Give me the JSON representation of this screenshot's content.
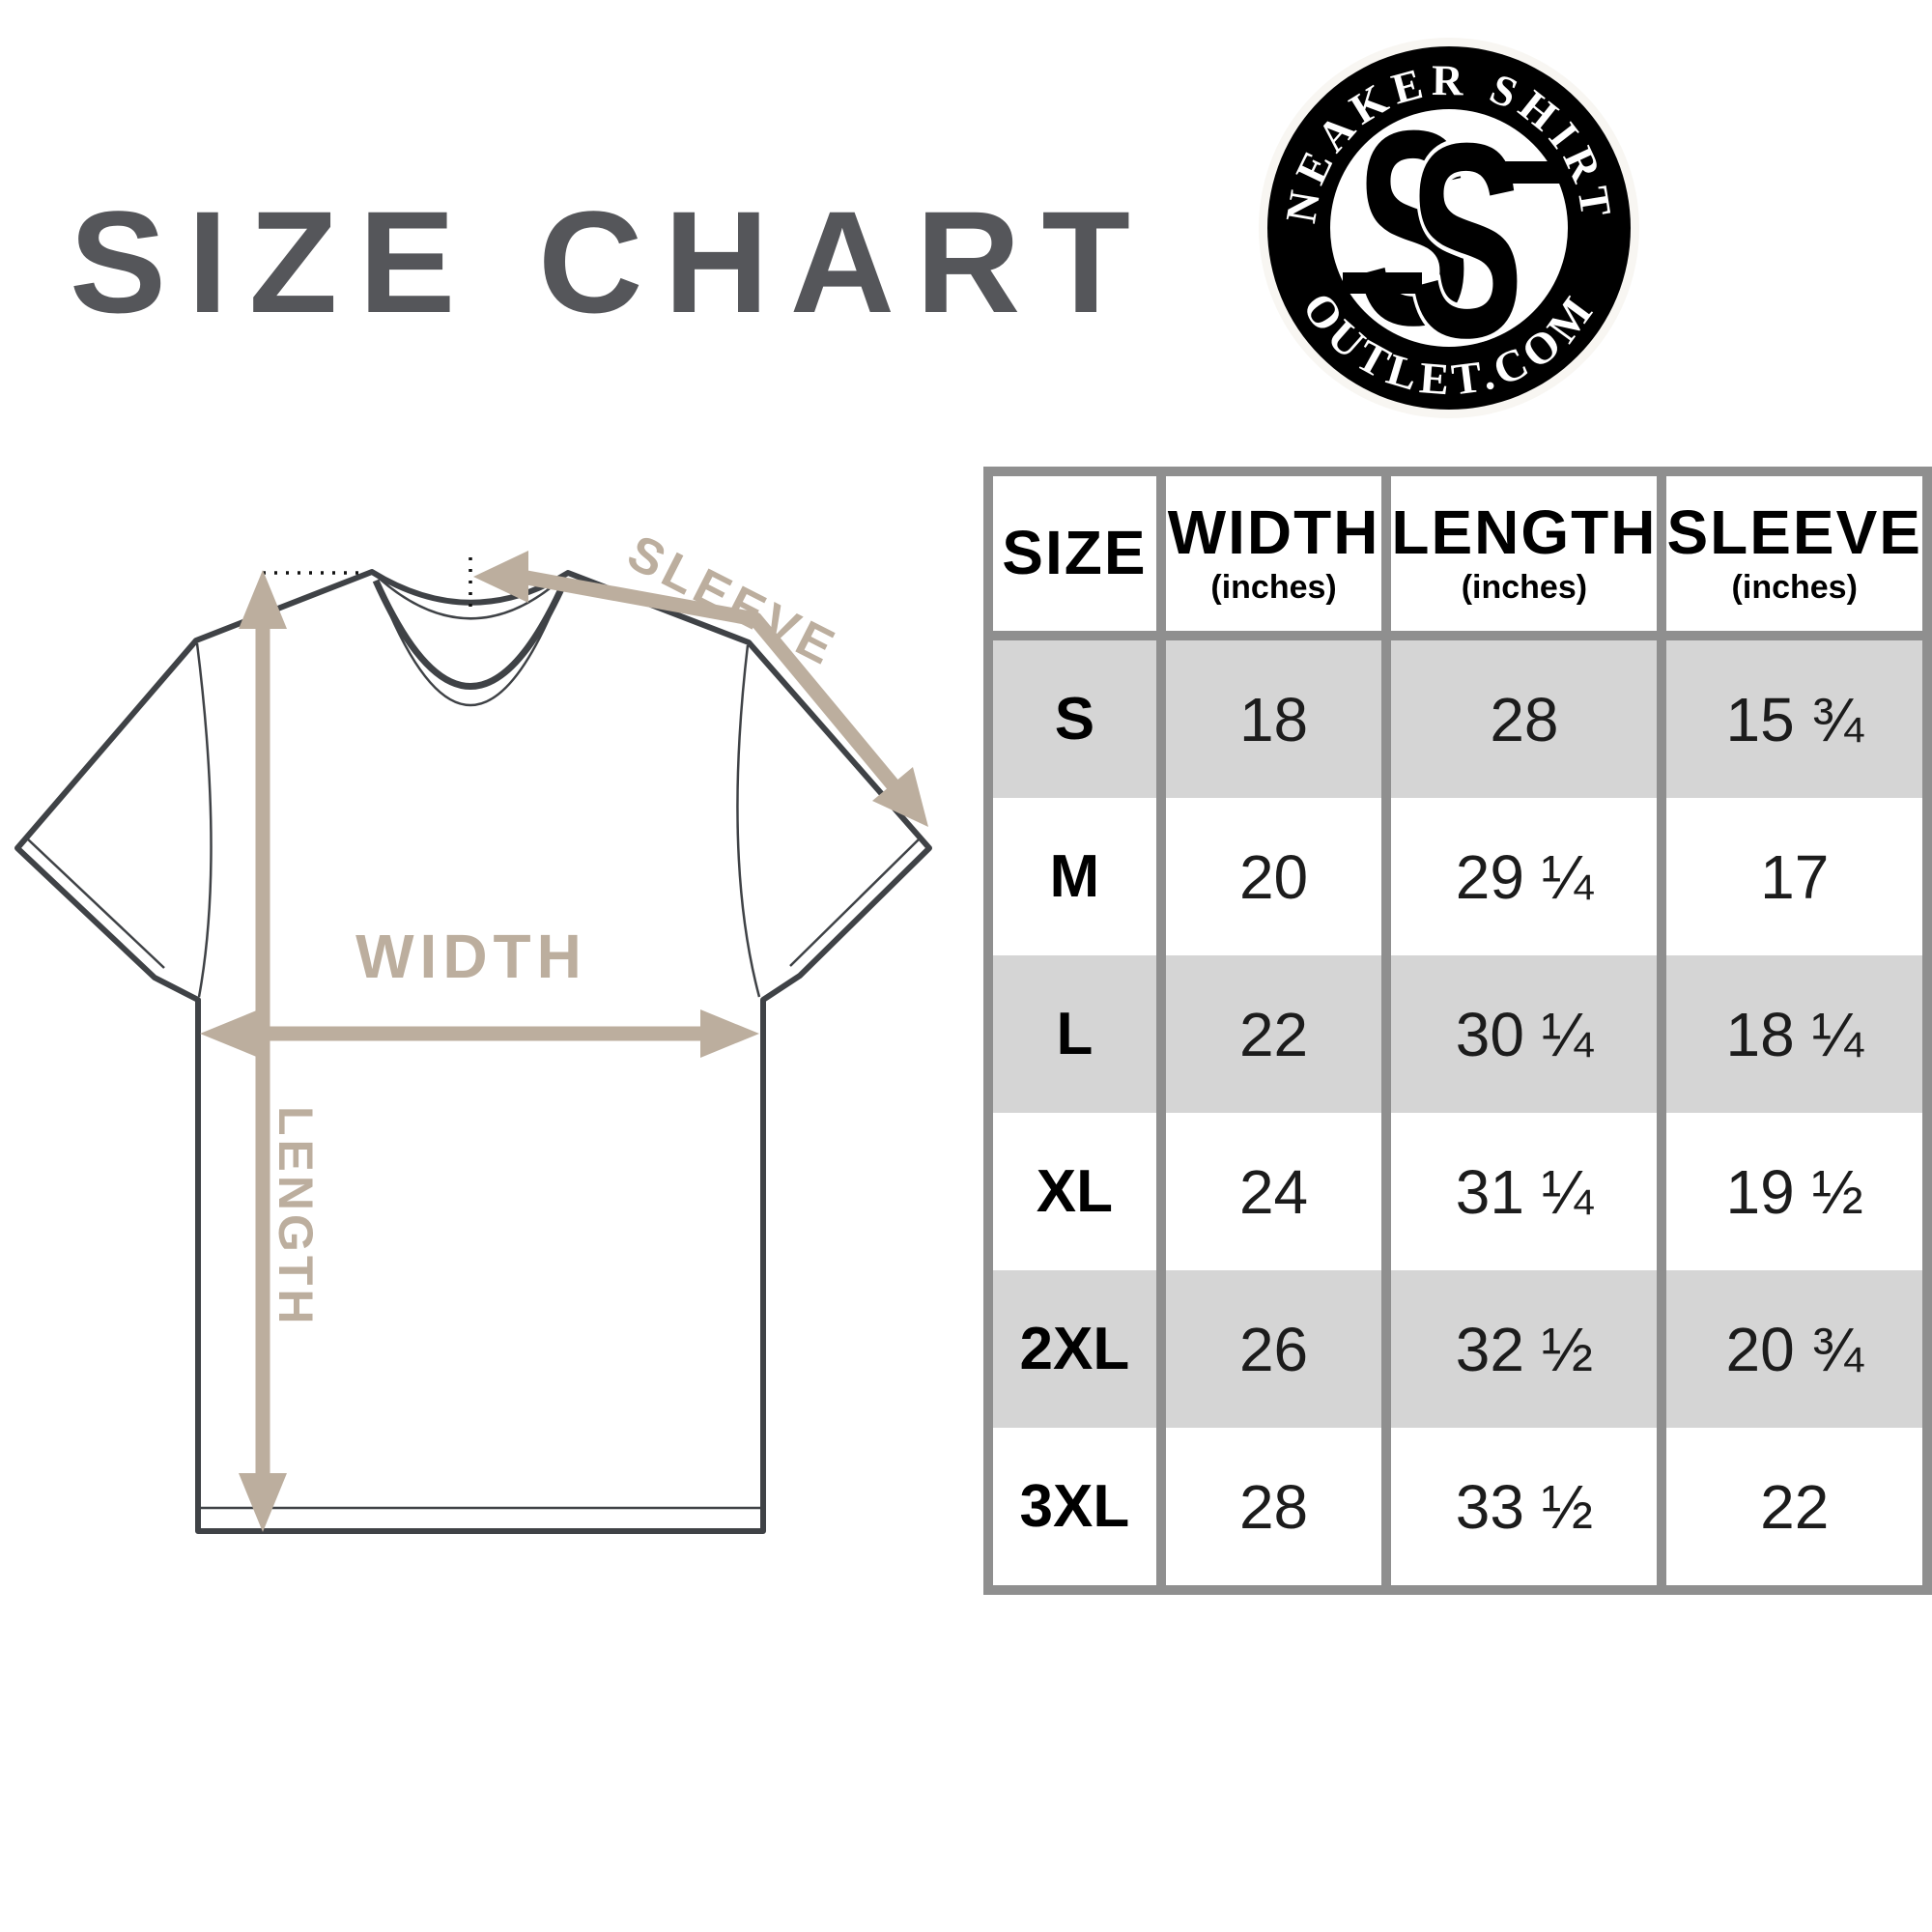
{
  "title": "SIZE CHART",
  "logo": {
    "arc_top": "SNEAKER SHIRTS",
    "arc_bottom": "OUTLET.COM",
    "monogram_letter_1": "S",
    "monogram_letter_2": "S",
    "ring_color": "#000000",
    "text_color": "#ffffff"
  },
  "diagram": {
    "sleeve_label": "SLEEVE",
    "width_label": "WIDTH",
    "length_label": "LENGTH",
    "arrow_color": "#bcae9e",
    "outline_color": "#3f4246"
  },
  "table_style": {
    "border_color": "#8f8f8f",
    "stripe_color": "#d5d5d5",
    "title_color": "#55565a"
  },
  "chart_data": {
    "type": "table",
    "title": "SIZE CHART",
    "columns": [
      {
        "label": "SIZE",
        "sub": ""
      },
      {
        "label": "WIDTH",
        "sub": "(inches)"
      },
      {
        "label": "LENGTH",
        "sub": "(inches)"
      },
      {
        "label": "SLEEVE",
        "sub": "(inches)"
      }
    ],
    "rows": [
      [
        "S",
        "18",
        "28",
        "15 ¾"
      ],
      [
        "M",
        "20",
        "29 ¼",
        "17"
      ],
      [
        "L",
        "22",
        "30 ¼",
        "18 ¼"
      ],
      [
        "XL",
        "24",
        "31 ¼",
        "19 ½"
      ],
      [
        "2XL",
        "26",
        "32 ½",
        "20 ¾"
      ],
      [
        "3XL",
        "28",
        "33 ½",
        "22"
      ]
    ]
  }
}
